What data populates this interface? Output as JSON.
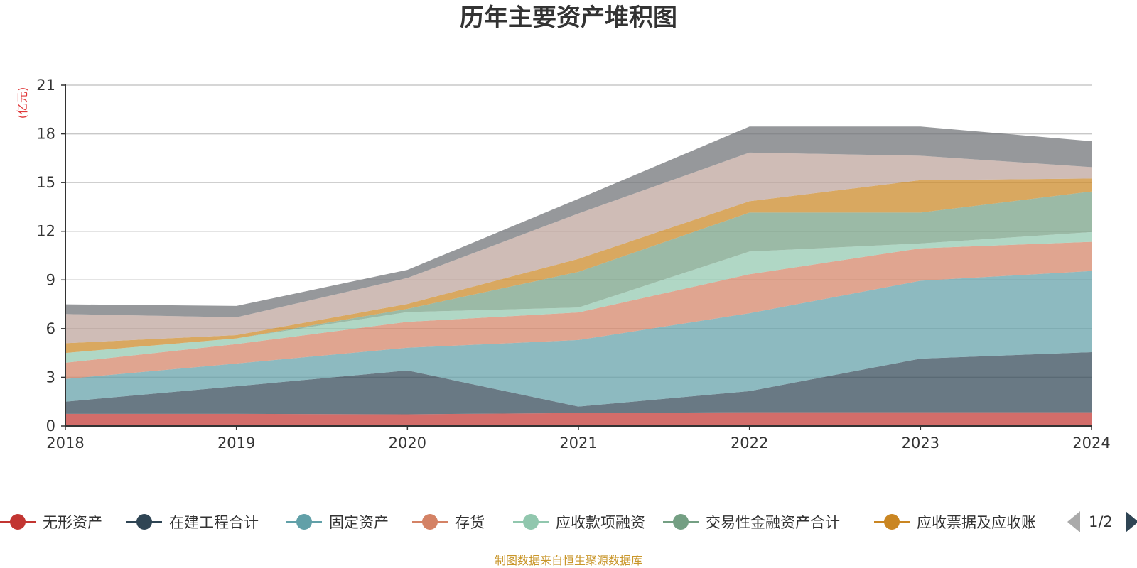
{
  "chart_data": {
    "type": "area",
    "stacked": true,
    "title": "历年主要资产堆积图",
    "unit_label": "(亿元)",
    "x": [
      "2018",
      "2019",
      "2020",
      "2021",
      "2022",
      "2023",
      "2024"
    ],
    "ylim": [
      0,
      21
    ],
    "yticks": [
      "0",
      "3",
      "6",
      "9",
      "12",
      "15",
      "18",
      "21"
    ],
    "grid": true,
    "legend_position": "bottom",
    "series": [
      {
        "name": "无形资产",
        "color": "#c23531",
        "values": [
          0.75,
          0.75,
          0.72,
          0.8,
          0.85,
          0.85,
          0.85
        ]
      },
      {
        "name": "在建工程合计",
        "color": "#2f4554",
        "values": [
          0.75,
          1.7,
          2.7,
          0.4,
          1.3,
          3.3,
          3.7
        ]
      },
      {
        "name": "固定资产",
        "color": "#61a0a8",
        "values": [
          1.4,
          1.4,
          1.4,
          4.1,
          4.8,
          4.8,
          5.0
        ]
      },
      {
        "name": "存货",
        "color": "#d48265",
        "values": [
          1.0,
          1.2,
          1.6,
          1.7,
          2.4,
          2.0,
          1.8
        ]
      },
      {
        "name": "应收款项融资",
        "color": "#91c7ae",
        "values": [
          0.6,
          0.35,
          0.6,
          0.3,
          1.4,
          0.3,
          0.6
        ]
      },
      {
        "name": "交易性金融资产合计",
        "color": "#749f83",
        "values": [
          0,
          0,
          0.2,
          2.2,
          2.4,
          1.9,
          2.5
        ]
      },
      {
        "name": "应收票据及应收账",
        "color": "#ca8622",
        "values": [
          0.6,
          0.2,
          0.3,
          0.8,
          0.7,
          2.0,
          0.8
        ]
      },
      {
        "values": [
          1.8,
          1.1,
          1.6,
          2.8,
          3.0,
          1.5,
          0.7
        ]
      },
      {
        "values": [
          0.6,
          0.7,
          0.5,
          0.9,
          1.6,
          1.8,
          1.6
        ]
      }
    ]
  },
  "extra_series_colors": [
    "#bda29a",
    "#6e7074"
  ],
  "legend": {
    "page_indicator": "1/2",
    "prev_icon": "triangle-left-icon",
    "next_icon": "triangle-right-icon"
  },
  "footer": {
    "source": "制图数据来自恒生聚源数据库"
  }
}
